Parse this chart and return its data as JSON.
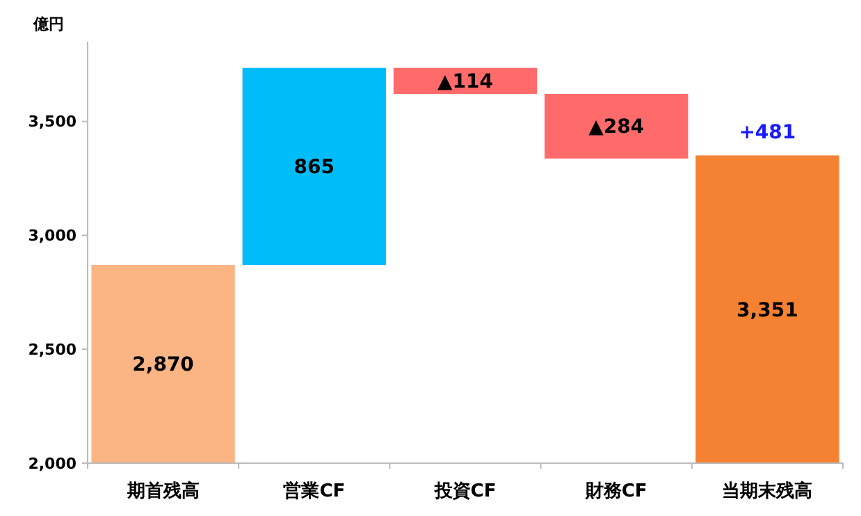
{
  "chart_data": {
    "type": "bar",
    "ylabel": "億円",
    "categories": [
      "期首残高",
      "営業CF",
      "投資CF",
      "財務CF",
      "当期末残高"
    ],
    "base": [
      2000,
      2870,
      3735,
      3621,
      2000
    ],
    "values": [
      870,
      865,
      -114,
      -284,
      1351
    ],
    "colors": [
      "#fbb584",
      "#00bdfa",
      "#ff6b6b",
      "#ff6b6b",
      "#f58233"
    ],
    "value_labels": [
      "2,870",
      "865",
      "▲114",
      "▲284",
      "3,351"
    ],
    "annotations": [
      {
        "text": "+481",
        "x": "当期末残高",
        "y": 3351
      }
    ],
    "ylim": [
      2000,
      3850
    ],
    "yticks": [
      {
        "value": 2000,
        "label": "2,000"
      },
      {
        "value": 2500,
        "label": "2,500"
      },
      {
        "value": 3000,
        "label": "3,000"
      },
      {
        "value": 3500,
        "label": "3,500"
      }
    ],
    "grid": false
  }
}
